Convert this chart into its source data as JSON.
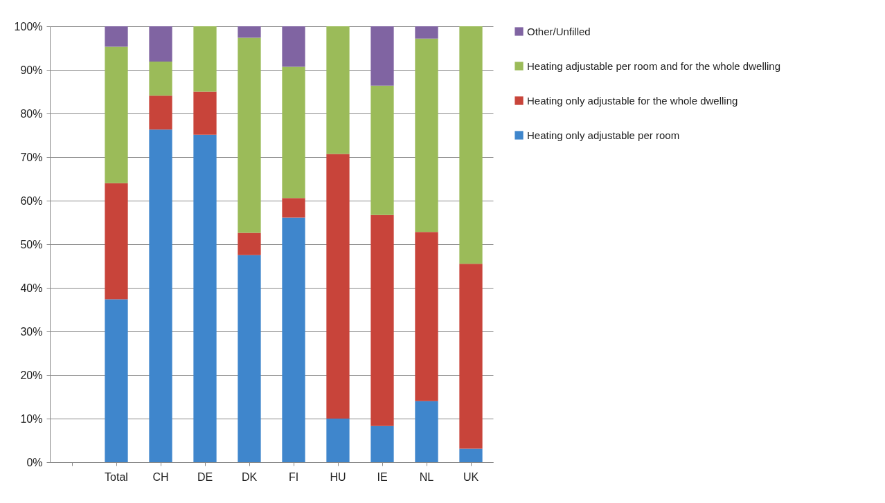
{
  "chart_data": {
    "type": "bar",
    "stacked": true,
    "categories": [
      null,
      "Total",
      "CH",
      "DE",
      "DK",
      "FI",
      "HU",
      "IE",
      "NL",
      "UK"
    ],
    "series": [
      {
        "name": "Heating only adjustable per room",
        "color": "#3f86cc",
        "values": [
          null,
          37.4,
          76.3,
          75.1,
          47.5,
          56.1,
          10.0,
          8.3,
          14.0,
          3.1
        ]
      },
      {
        "name": "Heating only adjustable for the whole dwelling",
        "color": "#c8443a",
        "values": [
          null,
          26.6,
          7.8,
          9.9,
          5.1,
          4.5,
          60.7,
          48.4,
          38.8,
          42.4
        ]
      },
      {
        "name": "Heating adjustable per room and for the whole dwelling",
        "color": "#9bbb59",
        "values": [
          null,
          31.3,
          7.8,
          15.0,
          44.8,
          30.1,
          29.3,
          29.7,
          44.4,
          54.5
        ]
      },
      {
        "name": "Other/Unfilled",
        "color": "#8064a2",
        "values": [
          null,
          4.7,
          8.1,
          0,
          2.6,
          9.3,
          0,
          13.6,
          2.8,
          0
        ]
      }
    ],
    "ylim": [
      0,
      100
    ],
    "yticks": [
      {
        "value": 0,
        "label": "0%"
      },
      {
        "value": 10,
        "label": "10%"
      },
      {
        "value": 20,
        "label": "20%"
      },
      {
        "value": 30,
        "label": "30%"
      },
      {
        "value": 40,
        "label": "40%"
      },
      {
        "value": 50,
        "label": "50%"
      },
      {
        "value": 60,
        "label": "60%"
      },
      {
        "value": 70,
        "label": "70%"
      },
      {
        "value": 80,
        "label": "80%"
      },
      {
        "value": 90,
        "label": "90%"
      },
      {
        "value": 100,
        "label": "100%"
      }
    ],
    "grid": "y",
    "legend": "right"
  }
}
